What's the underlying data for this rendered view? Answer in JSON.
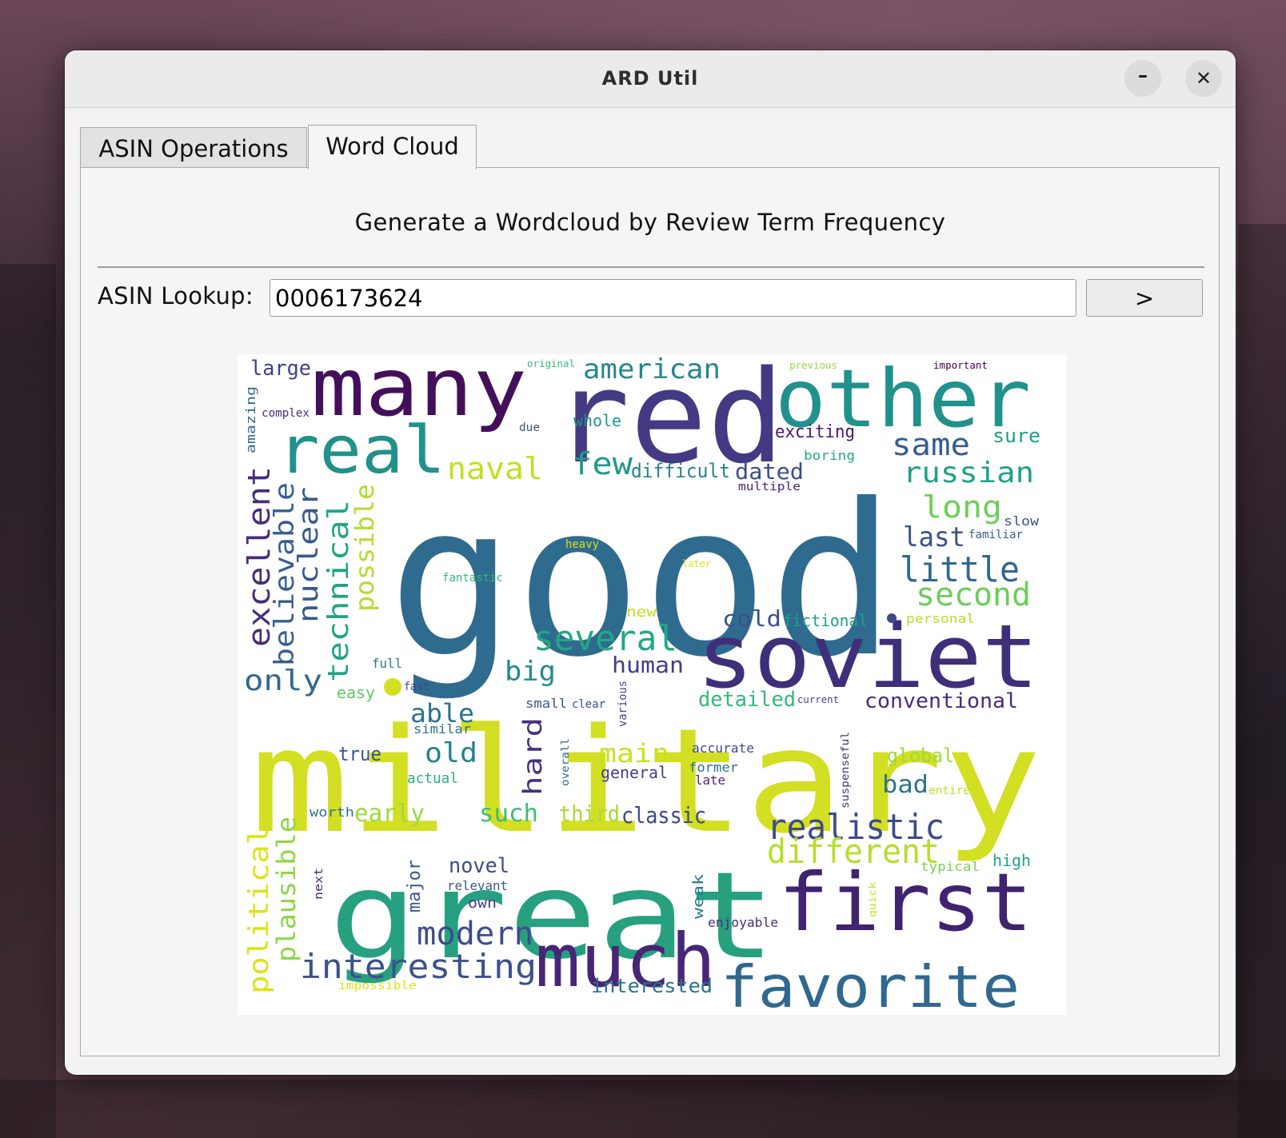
{
  "window": {
    "title": "ARD Util",
    "minimize_glyph": "–",
    "close_glyph": "✕"
  },
  "tabs": [
    {
      "label": "ASIN Operations",
      "active": false
    },
    {
      "label": "Word Cloud",
      "active": true
    }
  ],
  "word_cloud_tab": {
    "heading": "Generate a Wordcloud by Review Term Frequency",
    "lookup_label": "ASIN Lookup:",
    "asin_value": "0006173624",
    "go_label": ">"
  },
  "colors": {
    "background": "#ffffff",
    "palette": "viridis"
  },
  "word_cloud": {
    "words": [
      {
        "text": "good",
        "color": "#2f6b8e"
      },
      {
        "text": "military",
        "color": "#d2df22"
      },
      {
        "text": "great",
        "color": "#27a080"
      },
      {
        "text": "red",
        "color": "#443a83"
      },
      {
        "text": "many",
        "color": "#440f5a"
      },
      {
        "text": "other",
        "color": "#21918c"
      },
      {
        "text": "soviet",
        "color": "#3f2e79"
      },
      {
        "text": "first",
        "color": "#40236f"
      },
      {
        "text": "much",
        "color": "#482677"
      },
      {
        "text": "favorite",
        "color": "#30688e"
      },
      {
        "text": "real",
        "color": "#21918c"
      },
      {
        "text": "several",
        "color": "#22a884"
      },
      {
        "text": "realistic",
        "color": "#3e4a89"
      },
      {
        "text": "different",
        "color": "#b5de2b"
      },
      {
        "text": "interesting",
        "color": "#3b528b"
      },
      {
        "text": "modern",
        "color": "#3e4c8a"
      },
      {
        "text": "little",
        "color": "#31688e"
      },
      {
        "text": "second",
        "color": "#6ccd5a"
      },
      {
        "text": "excellent",
        "color": "#472d7b"
      },
      {
        "text": "believable",
        "color": "#355f8d"
      },
      {
        "text": "nuclear",
        "color": "#38598c"
      },
      {
        "text": "technical",
        "color": "#20a386"
      },
      {
        "text": "possible",
        "color": "#b2dd2d"
      },
      {
        "text": "naval",
        "color": "#c2df23"
      },
      {
        "text": "american",
        "color": "#25858e"
      },
      {
        "text": "few",
        "color": "#1f998a"
      },
      {
        "text": "same",
        "color": "#355e8d"
      },
      {
        "text": "russian",
        "color": "#1fa187"
      },
      {
        "text": "long",
        "color": "#6ece58"
      },
      {
        "text": "last",
        "color": "#3b528b"
      },
      {
        "text": "only",
        "color": "#31688e"
      },
      {
        "text": "big",
        "color": "#238a8d"
      },
      {
        "text": "human",
        "color": "#433e85"
      },
      {
        "text": "able",
        "color": "#2d708e"
      },
      {
        "text": "old",
        "color": "#26828e"
      },
      {
        "text": "hard",
        "color": "#46307e"
      },
      {
        "text": "main",
        "color": "#c8e020"
      },
      {
        "text": "early",
        "color": "#9fda3a"
      },
      {
        "text": "such",
        "color": "#3dbc74"
      },
      {
        "text": "third",
        "color": "#a5db36"
      },
      {
        "text": "classic",
        "color": "#3e4989"
      },
      {
        "text": "political",
        "color": "#dde318"
      },
      {
        "text": "plausible",
        "color": "#8ed645"
      },
      {
        "text": "major",
        "color": "#3a548c"
      },
      {
        "text": "novel",
        "color": "#3e4c8a"
      },
      {
        "text": "cold",
        "color": "#3c508b"
      },
      {
        "text": "large",
        "color": "#424086"
      },
      {
        "text": "dated",
        "color": "#3e4c8a"
      },
      {
        "text": "detailed",
        "color": "#35b779"
      },
      {
        "text": "conventional",
        "color": "#472c7a"
      },
      {
        "text": "bad",
        "color": "#2c728e"
      },
      {
        "text": "global",
        "color": "#a0da39"
      },
      {
        "text": "interested",
        "color": "#2d708e"
      },
      {
        "text": "difficult",
        "color": "#26828e"
      },
      {
        "text": "exciting",
        "color": "#48186a"
      },
      {
        "text": "whole",
        "color": "#1f948c"
      },
      {
        "text": "sure",
        "color": "#1f9e89"
      },
      {
        "text": "true",
        "color": "#3b528b"
      },
      {
        "text": "fictional",
        "color": "#1fa088"
      },
      {
        "text": "high",
        "color": "#1fa287"
      },
      {
        "text": "accurate",
        "color": "#3f4788"
      },
      {
        "text": "former",
        "color": "#2d708e"
      },
      {
        "text": "general",
        "color": "#433e85"
      },
      {
        "text": "late",
        "color": "#482475"
      },
      {
        "text": "actual",
        "color": "#2ab07f"
      },
      {
        "text": "similar",
        "color": "#2c728e"
      },
      {
        "text": "small",
        "color": "#3b528b"
      },
      {
        "text": "clear",
        "color": "#3e4989"
      },
      {
        "text": "easy",
        "color": "#5ec962"
      },
      {
        "text": "full",
        "color": "#2a788e"
      },
      {
        "text": "fast",
        "color": "#414487"
      },
      {
        "text": "new",
        "color": "#c0df25"
      },
      {
        "text": "fantastic",
        "color": "#35b779"
      },
      {
        "text": "heavy",
        "color": "#d8e219"
      },
      {
        "text": "later",
        "color": "#dae319"
      },
      {
        "text": "personal",
        "color": "#b5de2b"
      },
      {
        "text": "slow",
        "color": "#3b528b"
      },
      {
        "text": "familiar",
        "color": "#355f8d"
      },
      {
        "text": "boring",
        "color": "#22a884"
      },
      {
        "text": "multiple",
        "color": "#482475"
      },
      {
        "text": "original",
        "color": "#35b779"
      },
      {
        "text": "previous",
        "color": "#95d840"
      },
      {
        "text": "important",
        "color": "#440154"
      },
      {
        "text": "due",
        "color": "#3b528b"
      },
      {
        "text": "complex",
        "color": "#472d7b"
      },
      {
        "text": "amazing",
        "color": "#31688e"
      },
      {
        "text": "various",
        "color": "#3e4989"
      },
      {
        "text": "overall",
        "color": "#31688e"
      },
      {
        "text": "current",
        "color": "#414487"
      },
      {
        "text": "suspenseful",
        "color": "#46327e"
      },
      {
        "text": "entire",
        "color": "#c2df23"
      },
      {
        "text": "typical",
        "color": "#7ad151"
      },
      {
        "text": "worth",
        "color": "#2c728e"
      },
      {
        "text": "next",
        "color": "#482878"
      },
      {
        "text": "relevant",
        "color": "#38598c"
      },
      {
        "text": "own",
        "color": "#453882"
      },
      {
        "text": "weak",
        "color": "#2a788e"
      },
      {
        "text": "enjoyable",
        "color": "#472d7b"
      },
      {
        "text": "quick",
        "color": "#c8e020"
      },
      {
        "text": "impossible",
        "color": "#dde318"
      }
    ],
    "dots": [
      {
        "color": "#d2df22"
      },
      {
        "color": "#3e4989"
      }
    ]
  }
}
